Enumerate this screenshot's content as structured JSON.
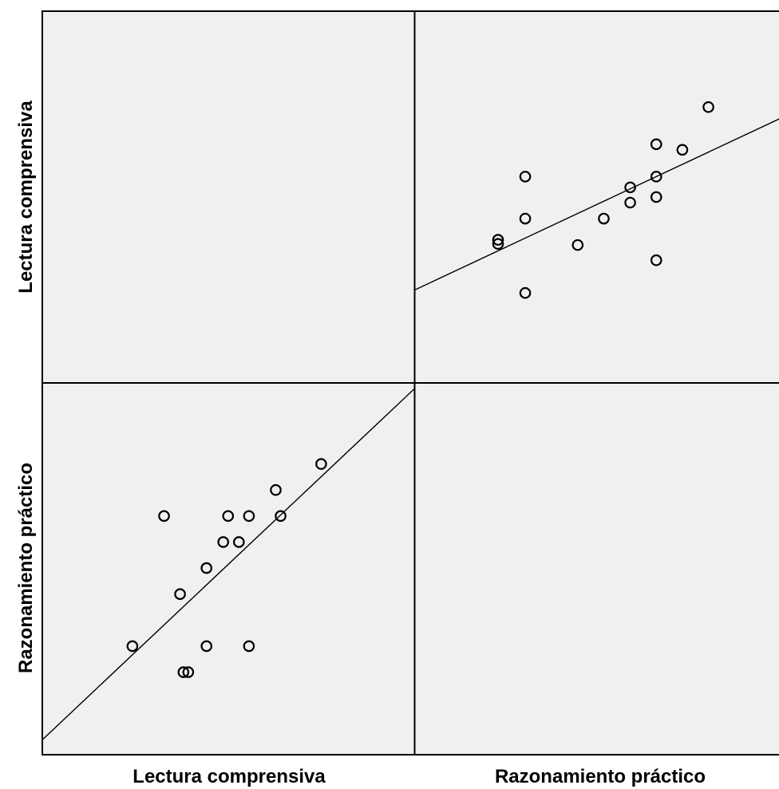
{
  "chart_data": {
    "type": "scatter",
    "variables": [
      "Lectura comprensiva",
      "Razonamiento práctico"
    ],
    "grid": false,
    "colors": {
      "panel_bg": "#f0f0f0",
      "marker": "#000000",
      "fit_line": "#000000",
      "frame": "#000000"
    },
    "panels": [
      {
        "row": 0,
        "col": 1,
        "xvar": "Razonamiento práctico",
        "yvar": "Lectura comprensiva",
        "xlim": [
          0,
          100
        ],
        "ylim": [
          0,
          100
        ],
        "points": [
          {
            "x": 22.4,
            "y": 38.5
          },
          {
            "x": 22.4,
            "y": 37.4
          },
          {
            "x": 29.7,
            "y": 55.5
          },
          {
            "x": 29.7,
            "y": 44.2
          },
          {
            "x": 29.7,
            "y": 24.2
          },
          {
            "x": 43.8,
            "y": 37.1
          },
          {
            "x": 50.8,
            "y": 44.2
          },
          {
            "x": 57.9,
            "y": 52.6
          },
          {
            "x": 57.9,
            "y": 48.5
          },
          {
            "x": 64.9,
            "y": 64.2
          },
          {
            "x": 64.9,
            "y": 55.5
          },
          {
            "x": 64.9,
            "y": 50.0
          },
          {
            "x": 64.9,
            "y": 33.0
          },
          {
            "x": 71.9,
            "y": 62.7
          },
          {
            "x": 78.9,
            "y": 74.2
          }
        ],
        "fit_line": [
          {
            "x": 0,
            "y": 25.0
          },
          {
            "x": 100,
            "y": 72.0
          }
        ]
      },
      {
        "row": 1,
        "col": 0,
        "xvar": "Lectura comprensiva",
        "yvar": "Razonamiento práctico",
        "xlim": [
          0,
          100
        ],
        "ylim": [
          0,
          100
        ],
        "points": [
          {
            "x": 24.2,
            "y": 29.2
          },
          {
            "x": 32.7,
            "y": 64.2
          },
          {
            "x": 37.0,
            "y": 43.2
          },
          {
            "x": 37.9,
            "y": 22.2
          },
          {
            "x": 39.2,
            "y": 22.2
          },
          {
            "x": 44.1,
            "y": 50.2
          },
          {
            "x": 44.1,
            "y": 29.2
          },
          {
            "x": 48.6,
            "y": 57.2
          },
          {
            "x": 49.9,
            "y": 64.2
          },
          {
            "x": 52.8,
            "y": 57.2
          },
          {
            "x": 55.5,
            "y": 64.2
          },
          {
            "x": 55.5,
            "y": 29.2
          },
          {
            "x": 62.7,
            "y": 71.2
          },
          {
            "x": 64.0,
            "y": 64.2
          },
          {
            "x": 74.9,
            "y": 78.2
          }
        ],
        "fit_line": [
          {
            "x": 0,
            "y": 4.0
          },
          {
            "x": 100,
            "y": 98.5
          }
        ]
      }
    ],
    "row_labels": [
      "Lectura comprensiva",
      "Razonamiento práctico"
    ],
    "col_labels": [
      "Lectura comprensiva",
      "Razonamiento práctico"
    ]
  }
}
